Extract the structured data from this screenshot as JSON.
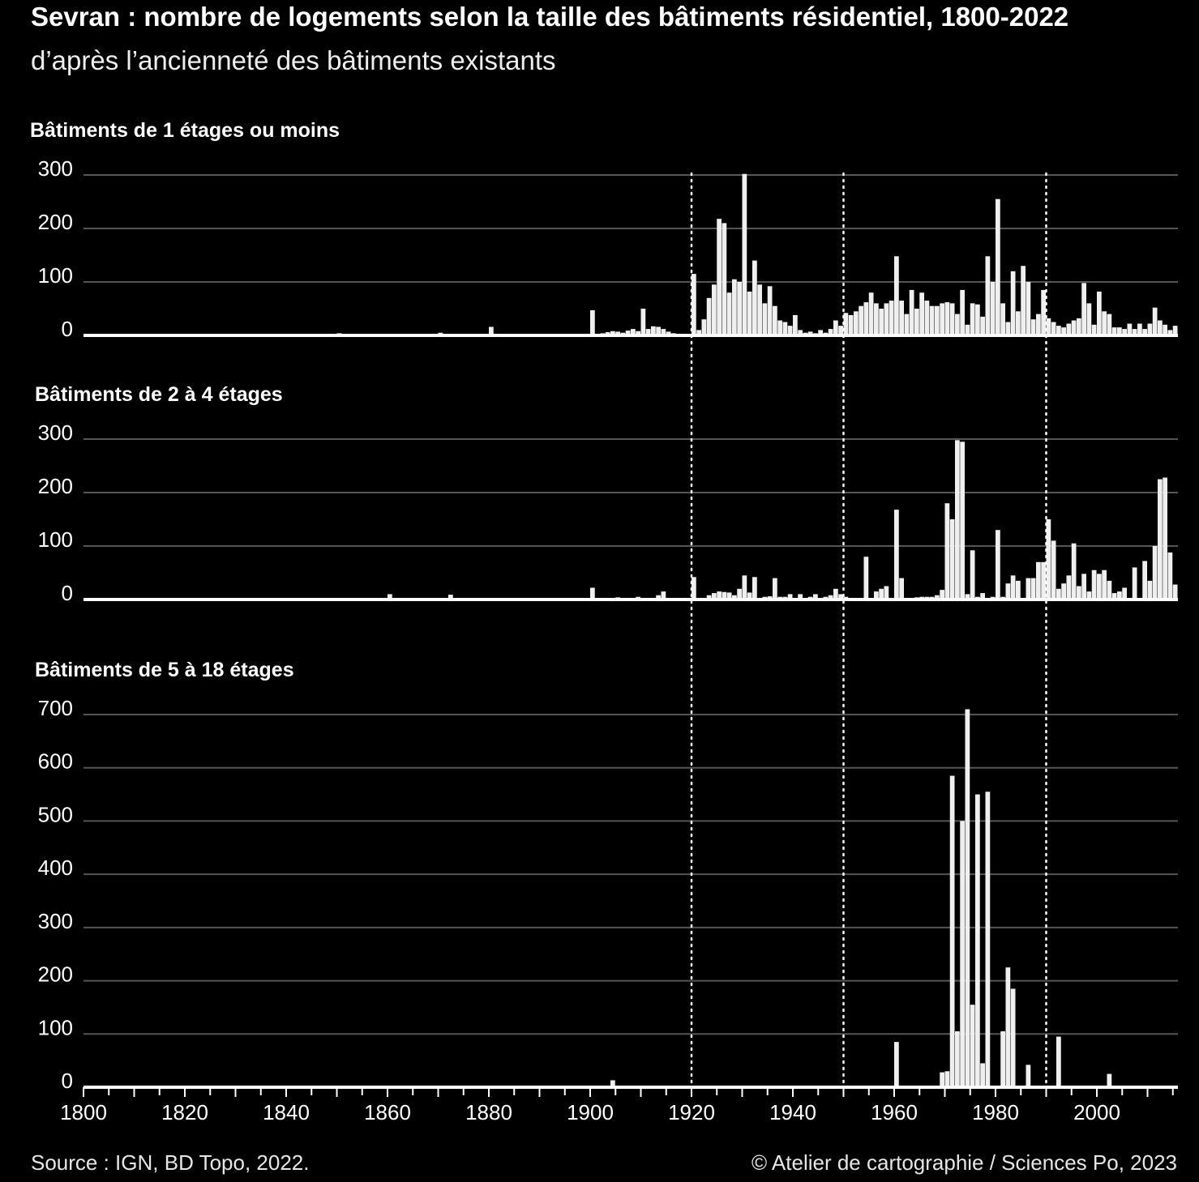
{
  "header": {
    "title": "Sevran : nombre de logements selon la taille des bâtiments résidentiel, 1800-2022",
    "subtitle": "d’après l’ancienneté des bâtiments existants"
  },
  "footer": {
    "source": "Source : IGN, BD Topo, 2022.",
    "credit": "© Atelier de cartographie / Sciences Po, 2023"
  },
  "colors": {
    "background": "#000000",
    "bars": "#efefef",
    "grid": "#555555",
    "axis": "#ffffff"
  },
  "chart_data": {
    "type": "bar",
    "x_range": [
      1800,
      2016
    ],
    "x_ticks": [
      1800,
      1820,
      1840,
      1860,
      1880,
      1900,
      1920,
      1940,
      1960,
      1980,
      2000
    ],
    "reference_years": [
      1920,
      1950,
      1990
    ],
    "panels": [
      {
        "title": "Bâtiments de 1 étages ou moins",
        "ylim": [
          0,
          300
        ],
        "y_ticks": [
          0,
          100,
          200,
          300
        ],
        "points": [
          [
            1850,
            4
          ],
          [
            1870,
            5
          ],
          [
            1880,
            16
          ],
          [
            1900,
            47
          ],
          [
            1901,
            3
          ],
          [
            1902,
            4
          ],
          [
            1903,
            6
          ],
          [
            1904,
            8
          ],
          [
            1905,
            7
          ],
          [
            1906,
            5
          ],
          [
            1907,
            9
          ],
          [
            1908,
            12
          ],
          [
            1909,
            8
          ],
          [
            1910,
            50
          ],
          [
            1911,
            12
          ],
          [
            1912,
            17
          ],
          [
            1913,
            16
          ],
          [
            1914,
            12
          ],
          [
            1915,
            7
          ],
          [
            1916,
            4
          ],
          [
            1917,
            2
          ],
          [
            1918,
            2
          ],
          [
            1919,
            2
          ],
          [
            1920,
            115
          ],
          [
            1921,
            10
          ],
          [
            1922,
            30
          ],
          [
            1923,
            70
          ],
          [
            1924,
            95
          ],
          [
            1925,
            218
          ],
          [
            1926,
            210
          ],
          [
            1927,
            80
          ],
          [
            1928,
            105
          ],
          [
            1929,
            100
          ],
          [
            1930,
            302
          ],
          [
            1931,
            82
          ],
          [
            1932,
            140
          ],
          [
            1933,
            95
          ],
          [
            1934,
            60
          ],
          [
            1935,
            92
          ],
          [
            1936,
            55
          ],
          [
            1937,
            28
          ],
          [
            1938,
            25
          ],
          [
            1939,
            18
          ],
          [
            1940,
            38
          ],
          [
            1941,
            10
          ],
          [
            1942,
            5
          ],
          [
            1943,
            7
          ],
          [
            1944,
            4
          ],
          [
            1945,
            10
          ],
          [
            1946,
            5
          ],
          [
            1947,
            12
          ],
          [
            1948,
            28
          ],
          [
            1949,
            18
          ],
          [
            1950,
            42
          ],
          [
            1951,
            38
          ],
          [
            1952,
            45
          ],
          [
            1953,
            55
          ],
          [
            1954,
            62
          ],
          [
            1955,
            80
          ],
          [
            1956,
            60
          ],
          [
            1957,
            50
          ],
          [
            1958,
            60
          ],
          [
            1959,
            65
          ],
          [
            1960,
            148
          ],
          [
            1961,
            65
          ],
          [
            1962,
            40
          ],
          [
            1963,
            85
          ],
          [
            1964,
            50
          ],
          [
            1965,
            80
          ],
          [
            1966,
            65
          ],
          [
            1967,
            55
          ],
          [
            1968,
            55
          ],
          [
            1969,
            60
          ],
          [
            1970,
            62
          ],
          [
            1971,
            60
          ],
          [
            1972,
            40
          ],
          [
            1973,
            85
          ],
          [
            1974,
            20
          ],
          [
            1975,
            60
          ],
          [
            1976,
            58
          ],
          [
            1977,
            35
          ],
          [
            1978,
            148
          ],
          [
            1979,
            100
          ],
          [
            1980,
            255
          ],
          [
            1981,
            60
          ],
          [
            1982,
            25
          ],
          [
            1983,
            120
          ],
          [
            1984,
            45
          ],
          [
            1985,
            130
          ],
          [
            1986,
            100
          ],
          [
            1987,
            30
          ],
          [
            1988,
            40
          ],
          [
            1989,
            85
          ],
          [
            1990,
            32
          ],
          [
            1991,
            25
          ],
          [
            1992,
            18
          ],
          [
            1993,
            15
          ],
          [
            1994,
            22
          ],
          [
            1995,
            28
          ],
          [
            1996,
            32
          ],
          [
            1997,
            98
          ],
          [
            1998,
            60
          ],
          [
            1999,
            20
          ],
          [
            2000,
            82
          ],
          [
            2001,
            45
          ],
          [
            2002,
            40
          ],
          [
            2003,
            15
          ],
          [
            2004,
            15
          ],
          [
            2005,
            12
          ],
          [
            2006,
            22
          ],
          [
            2007,
            12
          ],
          [
            2008,
            22
          ],
          [
            2009,
            12
          ],
          [
            2010,
            22
          ],
          [
            2011,
            52
          ],
          [
            2012,
            28
          ],
          [
            2013,
            20
          ],
          [
            2014,
            10
          ],
          [
            2015,
            18
          ]
        ]
      },
      {
        "title": "Bâtiments de 2 à 4 étages",
        "ylim": [
          0,
          300
        ],
        "y_ticks": [
          0,
          100,
          200,
          300
        ],
        "points": [
          [
            1860,
            10
          ],
          [
            1872,
            9
          ],
          [
            1900,
            22
          ],
          [
            1905,
            4
          ],
          [
            1906,
            3
          ],
          [
            1909,
            5
          ],
          [
            1911,
            3
          ],
          [
            1913,
            8
          ],
          [
            1914,
            15
          ],
          [
            1920,
            42
          ],
          [
            1923,
            8
          ],
          [
            1924,
            12
          ],
          [
            1925,
            15
          ],
          [
            1926,
            14
          ],
          [
            1927,
            13
          ],
          [
            1928,
            8
          ],
          [
            1929,
            20
          ],
          [
            1930,
            45
          ],
          [
            1931,
            13
          ],
          [
            1932,
            42
          ],
          [
            1934,
            5
          ],
          [
            1935,
            6
          ],
          [
            1936,
            40
          ],
          [
            1937,
            5
          ],
          [
            1938,
            5
          ],
          [
            1939,
            10
          ],
          [
            1941,
            10
          ],
          [
            1943,
            5
          ],
          [
            1944,
            10
          ],
          [
            1945,
            2
          ],
          [
            1946,
            5
          ],
          [
            1947,
            8
          ],
          [
            1948,
            20
          ],
          [
            1949,
            10
          ],
          [
            1950,
            5
          ],
          [
            1954,
            80
          ],
          [
            1956,
            15
          ],
          [
            1957,
            20
          ],
          [
            1958,
            25
          ],
          [
            1960,
            168
          ],
          [
            1961,
            40
          ],
          [
            1962,
            2
          ],
          [
            1963,
            3
          ],
          [
            1964,
            4
          ],
          [
            1965,
            5
          ],
          [
            1966,
            5
          ],
          [
            1967,
            5
          ],
          [
            1968,
            8
          ],
          [
            1969,
            18
          ],
          [
            1970,
            180
          ],
          [
            1971,
            150
          ],
          [
            1972,
            298
          ],
          [
            1973,
            295
          ],
          [
            1974,
            10
          ],
          [
            1975,
            92
          ],
          [
            1976,
            5
          ],
          [
            1977,
            12
          ],
          [
            1978,
            3
          ],
          [
            1979,
            5
          ],
          [
            1980,
            130
          ],
          [
            1981,
            5
          ],
          [
            1982,
            30
          ],
          [
            1983,
            45
          ],
          [
            1984,
            35
          ],
          [
            1985,
            3
          ],
          [
            1986,
            40
          ],
          [
            1987,
            40
          ],
          [
            1988,
            70
          ],
          [
            1989,
            70
          ],
          [
            1990,
            150
          ],
          [
            1991,
            110
          ],
          [
            1992,
            20
          ],
          [
            1993,
            30
          ],
          [
            1994,
            45
          ],
          [
            1995,
            105
          ],
          [
            1996,
            25
          ],
          [
            1997,
            48
          ],
          [
            1998,
            15
          ],
          [
            1999,
            55
          ],
          [
            2000,
            48
          ],
          [
            2001,
            55
          ],
          [
            2002,
            35
          ],
          [
            2003,
            12
          ],
          [
            2004,
            15
          ],
          [
            2005,
            22
          ],
          [
            2007,
            60
          ],
          [
            2009,
            72
          ],
          [
            2010,
            35
          ],
          [
            2011,
            100
          ],
          [
            2012,
            225
          ],
          [
            2013,
            228
          ],
          [
            2014,
            88
          ],
          [
            2015,
            28
          ]
        ]
      },
      {
        "title": "Bâtiments de 5 à 18 étages",
        "ylim": [
          0,
          700
        ],
        "y_ticks": [
          0,
          100,
          200,
          300,
          400,
          500,
          600,
          700
        ],
        "points": [
          [
            1904,
            13
          ],
          [
            1960,
            85
          ],
          [
            1969,
            28
          ],
          [
            1970,
            30
          ],
          [
            1971,
            585
          ],
          [
            1972,
            105
          ],
          [
            1973,
            500
          ],
          [
            1974,
            710
          ],
          [
            1975,
            155
          ],
          [
            1976,
            550
          ],
          [
            1977,
            45
          ],
          [
            1978,
            555
          ],
          [
            1981,
            105
          ],
          [
            1982,
            225
          ],
          [
            1983,
            185
          ],
          [
            1986,
            42
          ],
          [
            1990,
            2
          ],
          [
            1992,
            95
          ],
          [
            2002,
            25
          ]
        ]
      }
    ]
  }
}
